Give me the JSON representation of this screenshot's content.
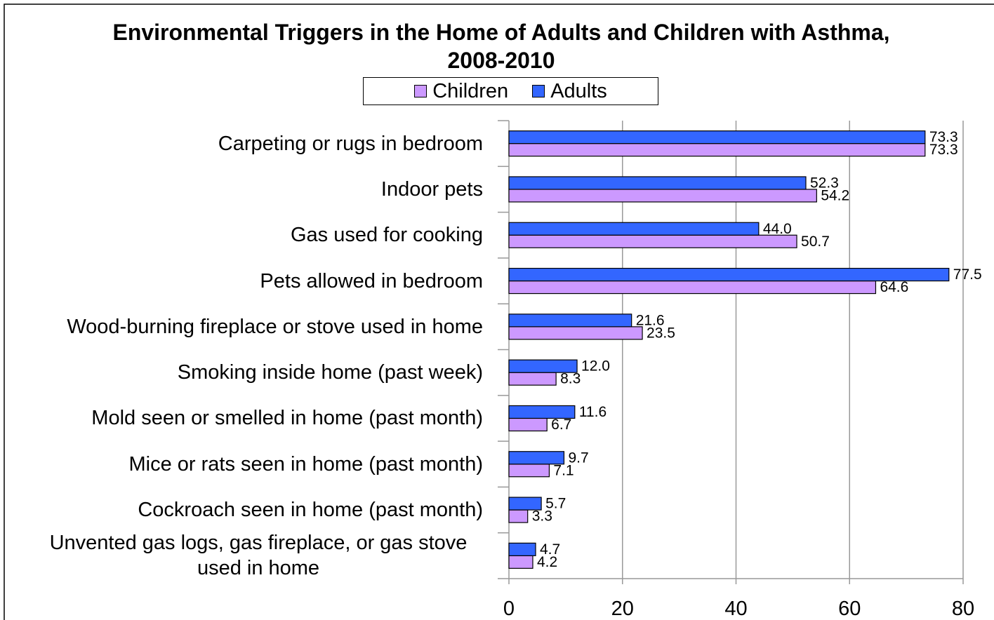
{
  "chart_data": {
    "type": "hbar",
    "title": "Environmental Triggers in the Home of Adults and Children with Asthma, 2008-2010",
    "categories": [
      "Carpeting or rugs in bedroom",
      "Indoor pets",
      "Gas used for cooking",
      "Pets allowed in bedroom",
      "Wood-burning fireplace or stove used in home",
      "Smoking inside home (past week)",
      "Mold seen or smelled in home (past month)",
      "Mice or rats seen in home (past month)",
      "Cockroach seen in home (past month)",
      "Unvented gas logs, gas fireplace, or gas stove used in home"
    ],
    "series": [
      {
        "name": "Children",
        "color": "#cc99ff",
        "values": [
          73.3,
          54.2,
          50.7,
          64.6,
          23.5,
          8.3,
          6.7,
          7.1,
          3.3,
          4.2
        ],
        "value_labels": [
          "73.3",
          "54.2",
          "50.7",
          "64.6",
          "23.5",
          "8.3",
          "6.7",
          "7.1",
          "3.3",
          "4.2"
        ]
      },
      {
        "name": "Adults",
        "color": "#3366ff",
        "values": [
          73.3,
          52.3,
          44.0,
          77.5,
          21.6,
          12.0,
          11.6,
          9.7,
          5.7,
          4.7
        ],
        "value_labels": [
          "73.3",
          "52.3",
          "44.0",
          "77.5",
          "21.6",
          "12.0",
          "11.6",
          "9.7",
          "5.7",
          "4.7"
        ]
      }
    ],
    "xlim": [
      0,
      80
    ],
    "xticks": [
      0,
      20,
      40,
      60,
      80
    ],
    "grid": true,
    "legend": "top"
  }
}
